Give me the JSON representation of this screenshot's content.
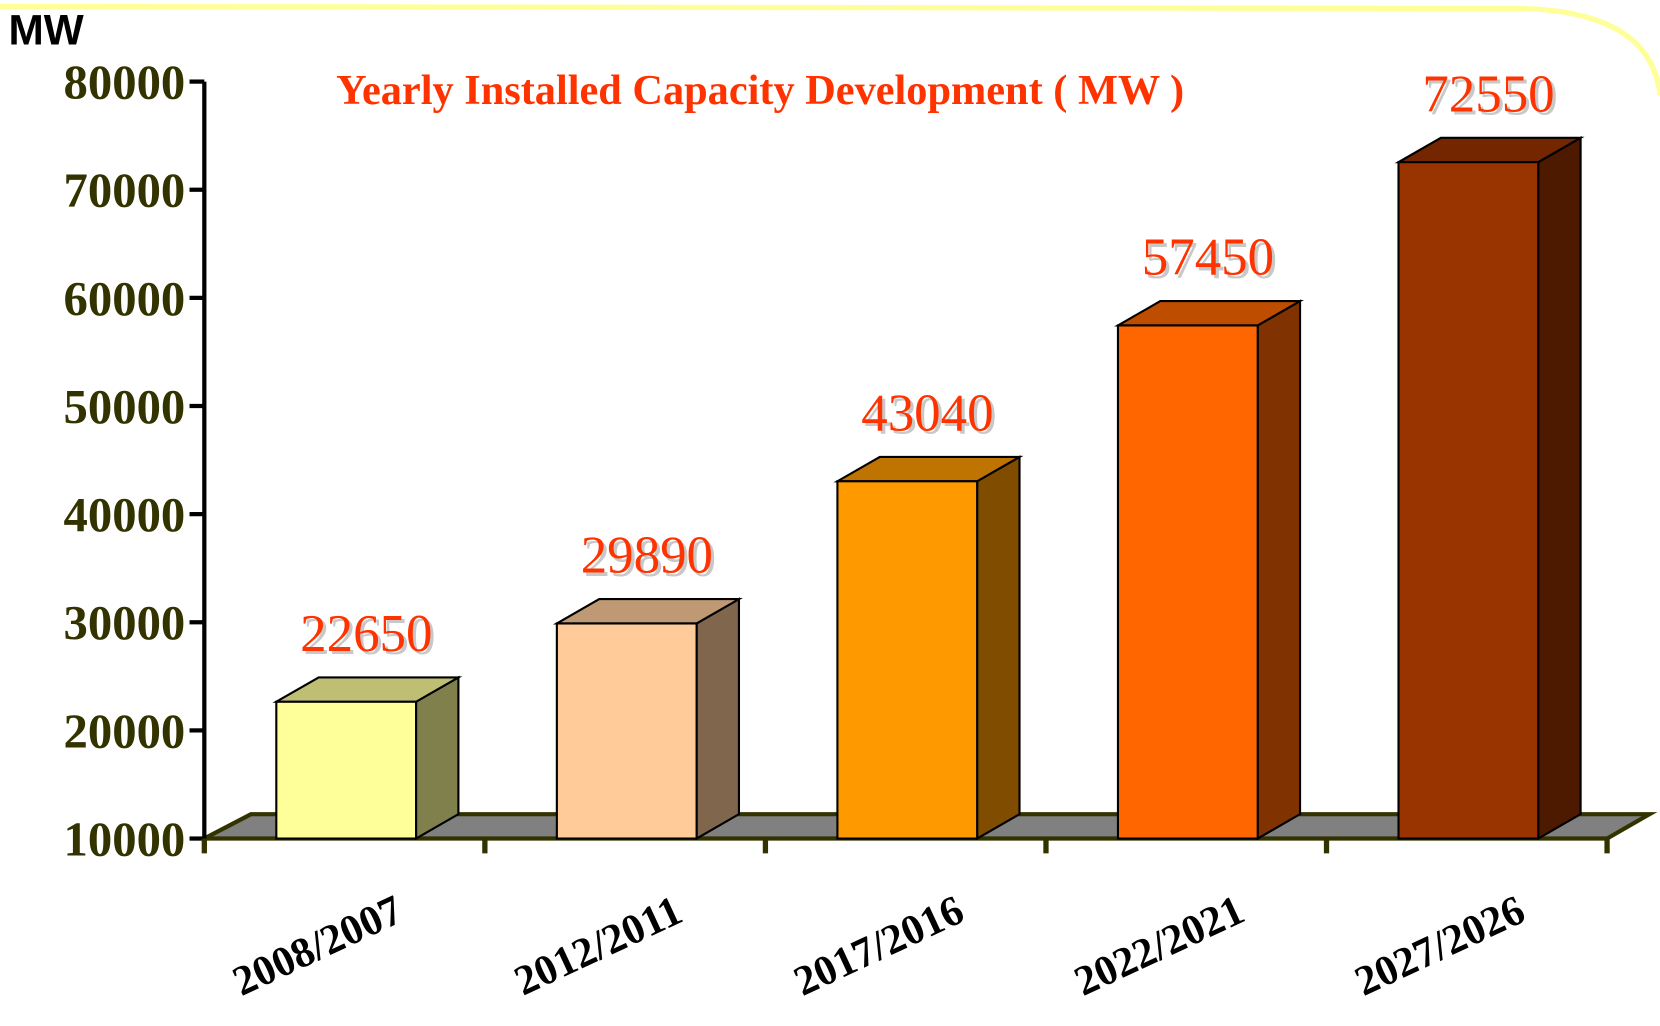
{
  "chart_data": {
    "type": "bar3d",
    "title": "Yearly Installed Capacity Development ( MW )",
    "y_label": "MW",
    "categories": [
      "2008/2007",
      "2012/2011",
      "2017/2016",
      "2022/2021",
      "2027/2026"
    ],
    "values": [
      22650,
      29890,
      43040,
      57450,
      72550
    ],
    "colors": [
      "#ffff99",
      "#ffcc99",
      "#ff9900",
      "#ff6600",
      "#993300"
    ],
    "ylim": [
      10000,
      80000
    ],
    "yticks": [
      10000,
      20000,
      30000,
      40000,
      50000,
      60000,
      70000,
      80000
    ],
    "grid": false
  }
}
